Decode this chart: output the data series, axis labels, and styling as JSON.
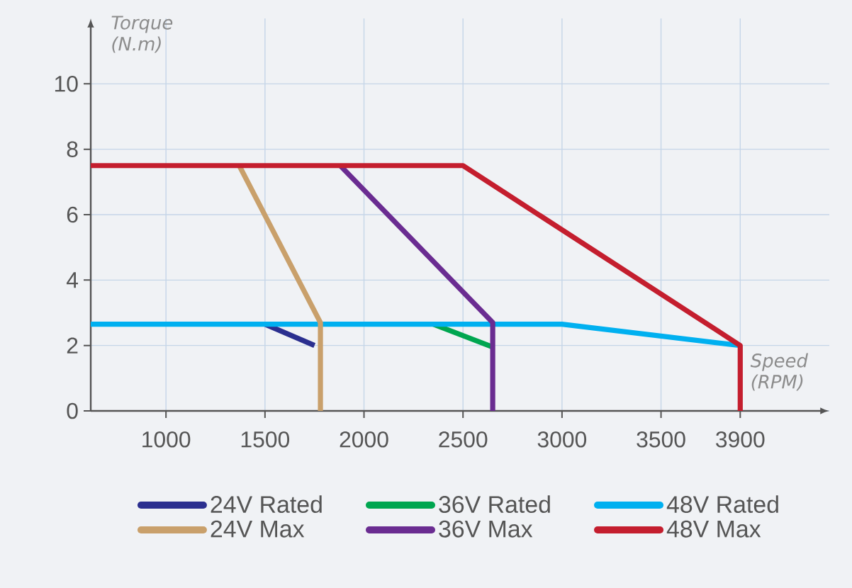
{
  "chart_data": {
    "type": "line",
    "xlabel": "Speed (RPM)",
    "ylabel": "Torque (N.m)",
    "xlim": [
      620,
      4350
    ],
    "ylim": [
      0,
      12
    ],
    "xticks": [
      1000,
      1500,
      2000,
      2500,
      3000,
      3500,
      3900
    ],
    "yticks": [
      0,
      2,
      4,
      6,
      8,
      10
    ],
    "grid": true,
    "legend": "bottom",
    "series": [
      {
        "name": "24V Rated",
        "color": "#2b2f8f",
        "x": [
          1500,
          1750
        ],
        "values": [
          2.65,
          2.0
        ]
      },
      {
        "name": "36V Rated",
        "color": "#00a650",
        "x": [
          2350,
          2650
        ],
        "values": [
          2.65,
          1.95
        ]
      },
      {
        "name": "48V Rated",
        "color": "#00b0f0",
        "x": [
          620,
          3000,
          3900
        ],
        "values": [
          2.65,
          2.65,
          2.0
        ]
      },
      {
        "name": "24V Max",
        "color": "#c9a06b",
        "x": [
          1370,
          1780,
          1780
        ],
        "values": [
          7.5,
          2.7,
          0
        ]
      },
      {
        "name": "36V Max",
        "color": "#6a2c91",
        "x": [
          1880,
          2650,
          2650
        ],
        "values": [
          7.5,
          2.7,
          0
        ]
      },
      {
        "name": "48V Max",
        "color": "#c41e2e",
        "x": [
          620,
          2500,
          3900,
          3900
        ],
        "values": [
          7.5,
          7.5,
          2.0,
          0
        ]
      }
    ]
  }
}
